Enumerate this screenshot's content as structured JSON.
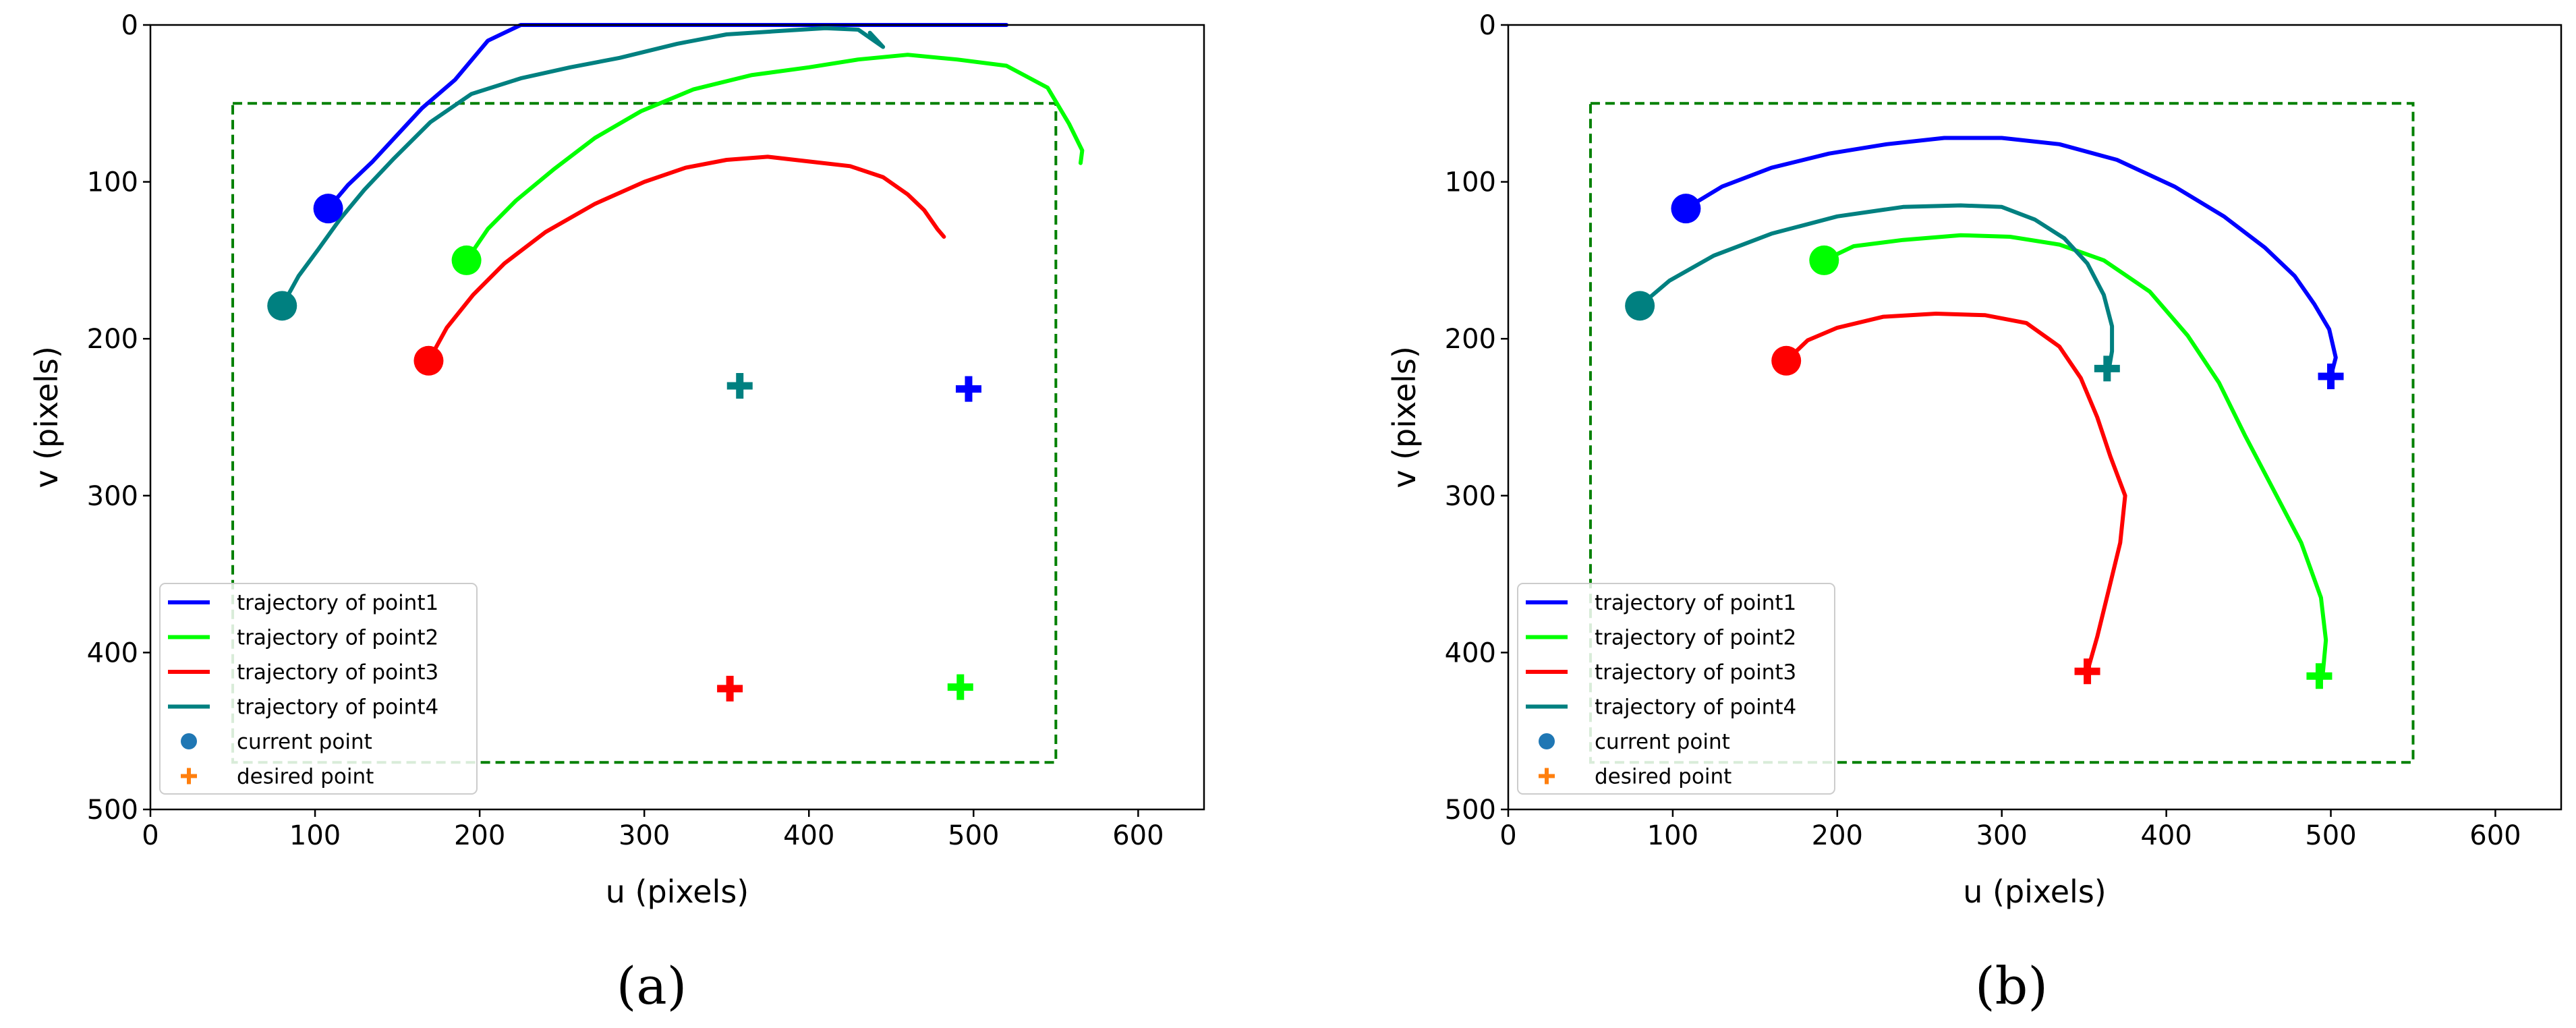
{
  "chart_data": [
    {
      "type": "line",
      "caption": "(a)",
      "xlabel": "u (pixels)",
      "ylabel": "v (pixels)",
      "xlim": [
        0,
        640
      ],
      "ylim": [
        500,
        0
      ],
      "xticks": [
        0,
        100,
        200,
        300,
        400,
        500,
        600
      ],
      "yticks": [
        0,
        100,
        200,
        300,
        400,
        500
      ],
      "boundary": {
        "u": [
          50,
          550
        ],
        "v": [
          50,
          470
        ],
        "color": "#008000"
      },
      "series": [
        {
          "name": "trajectory of point1",
          "color": "#0000ff",
          "points": [
            [
              108,
              117
            ],
            [
              120,
              102
            ],
            [
              135,
              87
            ],
            [
              150,
              70
            ],
            [
              165,
              53
            ],
            [
              185,
              35
            ],
            [
              205,
              10
            ],
            [
              225,
              0
            ],
            [
              300,
              0
            ],
            [
              400,
              0
            ],
            [
              520,
              0
            ]
          ],
          "current": [
            108,
            117
          ],
          "desired": [
            497,
            232
          ]
        },
        {
          "name": "trajectory of point2",
          "color": "#00ff00",
          "points": [
            [
              192,
              150
            ],
            [
              205,
              130
            ],
            [
              222,
              112
            ],
            [
              245,
              92
            ],
            [
              270,
              72
            ],
            [
              298,
              55
            ],
            [
              330,
              41
            ],
            [
              365,
              32
            ],
            [
              400,
              27
            ],
            [
              430,
              22
            ],
            [
              460,
              19
            ],
            [
              490,
              22
            ],
            [
              520,
              26
            ],
            [
              545,
              40
            ],
            [
              558,
              63
            ],
            [
              566,
              80
            ],
            [
              565,
              88
            ]
          ],
          "current": [
            192,
            150
          ],
          "desired": [
            492,
            422
          ]
        },
        {
          "name": "trajectory of point3",
          "color": "#ff0000",
          "points": [
            [
              169,
              214
            ],
            [
              180,
              193
            ],
            [
              196,
              172
            ],
            [
              215,
              152
            ],
            [
              240,
              132
            ],
            [
              270,
              114
            ],
            [
              300,
              100
            ],
            [
              325,
              91
            ],
            [
              350,
              86
            ],
            [
              375,
              84
            ],
            [
              400,
              87
            ],
            [
              425,
              90
            ],
            [
              445,
              97
            ],
            [
              460,
              108
            ],
            [
              470,
              118
            ],
            [
              478,
              130
            ],
            [
              482,
              135
            ]
          ],
          "current": [
            169,
            214
          ],
          "desired": [
            352,
            423
          ]
        },
        {
          "name": "trajectory of point4",
          "color": "#008080",
          "points": [
            [
              80,
              179
            ],
            [
              90,
              160
            ],
            [
              102,
              143
            ],
            [
              115,
              124
            ],
            [
              130,
              105
            ],
            [
              148,
              85
            ],
            [
              170,
              62
            ],
            [
              195,
              44
            ],
            [
              225,
              34
            ],
            [
              255,
              27
            ],
            [
              285,
              21
            ],
            [
              320,
              12
            ],
            [
              350,
              6
            ],
            [
              380,
              4
            ],
            [
              410,
              2
            ],
            [
              430,
              3
            ],
            [
              445,
              14
            ],
            [
              437,
              5
            ]
          ],
          "current": [
            80,
            179
          ],
          "desired": [
            358,
            230
          ]
        }
      ]
    },
    {
      "type": "line",
      "caption": "(b)",
      "xlabel": "u (pixels)",
      "ylabel": "v (pixels)",
      "xlim": [
        0,
        640
      ],
      "ylim": [
        500,
        0
      ],
      "xticks": [
        0,
        100,
        200,
        300,
        400,
        500,
        600
      ],
      "yticks": [
        0,
        100,
        200,
        300,
        400,
        500
      ],
      "boundary": {
        "u": [
          50,
          550
        ],
        "v": [
          50,
          470
        ],
        "color": "#008000"
      },
      "series": [
        {
          "name": "trajectory of point1",
          "color": "#0000ff",
          "points": [
            [
              108,
              117
            ],
            [
              130,
              103
            ],
            [
              160,
              91
            ],
            [
              195,
              82
            ],
            [
              230,
              76
            ],
            [
              265,
              72
            ],
            [
              300,
              72
            ],
            [
              335,
              76
            ],
            [
              370,
              86
            ],
            [
              405,
              103
            ],
            [
              435,
              122
            ],
            [
              460,
              142
            ],
            [
              478,
              160
            ],
            [
              490,
              178
            ],
            [
              499,
              194
            ],
            [
              503,
              212
            ],
            [
              500,
              224
            ]
          ],
          "current": [
            108,
            117
          ],
          "desired": [
            500,
            224
          ]
        },
        {
          "name": "trajectory of point2",
          "color": "#00ff00",
          "points": [
            [
              192,
              150
            ],
            [
              210,
              141
            ],
            [
              240,
              137
            ],
            [
              275,
              134
            ],
            [
              305,
              135
            ],
            [
              335,
              140
            ],
            [
              362,
              150
            ],
            [
              390,
              170
            ],
            [
              413,
              198
            ],
            [
              432,
              228
            ],
            [
              448,
              262
            ],
            [
              465,
              296
            ],
            [
              482,
              330
            ],
            [
              494,
              365
            ],
            [
              497,
              392
            ],
            [
              495,
              415
            ]
          ],
          "current": [
            192,
            150
          ],
          "desired": [
            493,
            415
          ]
        },
        {
          "name": "trajectory of point3",
          "color": "#ff0000",
          "points": [
            [
              169,
              214
            ],
            [
              182,
              201
            ],
            [
              200,
              193
            ],
            [
              228,
              186
            ],
            [
              260,
              184
            ],
            [
              290,
              185
            ],
            [
              315,
              190
            ],
            [
              335,
              205
            ],
            [
              348,
              225
            ],
            [
              358,
              250
            ],
            [
              366,
              275
            ],
            [
              375,
              300
            ],
            [
              372,
              330
            ],
            [
              365,
              360
            ],
            [
              358,
              390
            ],
            [
              352,
              412
            ]
          ],
          "current": [
            169,
            214
          ],
          "desired": [
            352,
            412
          ]
        },
        {
          "name": "trajectory of point4",
          "color": "#008080",
          "points": [
            [
              80,
              179
            ],
            [
              98,
              163
            ],
            [
              125,
              147
            ],
            [
              160,
              133
            ],
            [
              200,
              122
            ],
            [
              240,
              116
            ],
            [
              275,
              115
            ],
            [
              300,
              116
            ],
            [
              320,
              124
            ],
            [
              338,
              136
            ],
            [
              352,
              152
            ],
            [
              362,
              172
            ],
            [
              367,
              192
            ],
            [
              367,
              208
            ],
            [
              365,
              220
            ]
          ],
          "current": [
            80,
            179
          ],
          "desired": [
            364,
            219
          ]
        }
      ]
    }
  ],
  "legend": {
    "entries": [
      "trajectory of point1",
      "trajectory of point2",
      "trajectory of point3",
      "trajectory of point4"
    ],
    "current_label": "current point",
    "desired_label": "desired point",
    "current_color": "#1f77b4",
    "desired_color": "#ff7f0e"
  }
}
